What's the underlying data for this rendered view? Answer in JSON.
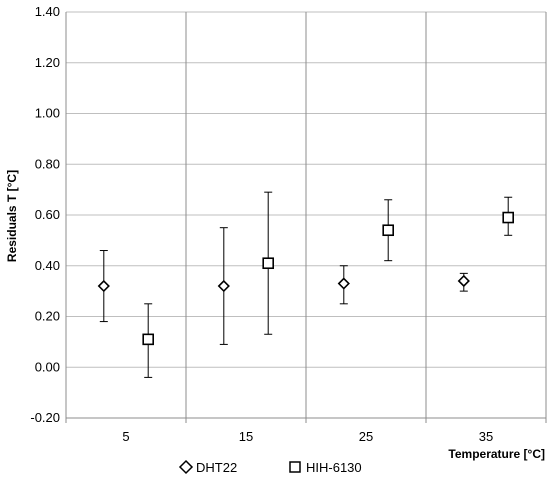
{
  "chart_data": {
    "type": "scatter",
    "title": "",
    "ylabel": "Residuals T [°C]",
    "xlabel": "Temperature [°C]",
    "ylim": [
      -0.2,
      1.4
    ],
    "y_ticks": [
      "1.40",
      "1.20",
      "1.00",
      "0.80",
      "0.60",
      "0.40",
      "0.20",
      "0.00",
      "-0.20"
    ],
    "y_tick_values": [
      1.4,
      1.2,
      1.0,
      0.8,
      0.6,
      0.4,
      0.2,
      0.0,
      -0.2
    ],
    "categories": [
      "5",
      "15",
      "25",
      "35"
    ],
    "grid": "horizontal and vertical",
    "legend_position": "bottom",
    "series": [
      {
        "name": "DHT22",
        "marker": "diamond",
        "values": [
          0.32,
          0.32,
          0.33,
          0.34
        ],
        "error_low": [
          0.18,
          0.09,
          0.25,
          0.3
        ],
        "error_high": [
          0.46,
          0.55,
          0.4,
          0.37
        ]
      },
      {
        "name": "HIH-6130",
        "marker": "square",
        "values": [
          0.11,
          0.41,
          0.54,
          0.59
        ],
        "error_low": [
          -0.04,
          0.13,
          0.42,
          0.52
        ],
        "error_high": [
          0.25,
          0.69,
          0.66,
          0.67
        ]
      }
    ]
  }
}
